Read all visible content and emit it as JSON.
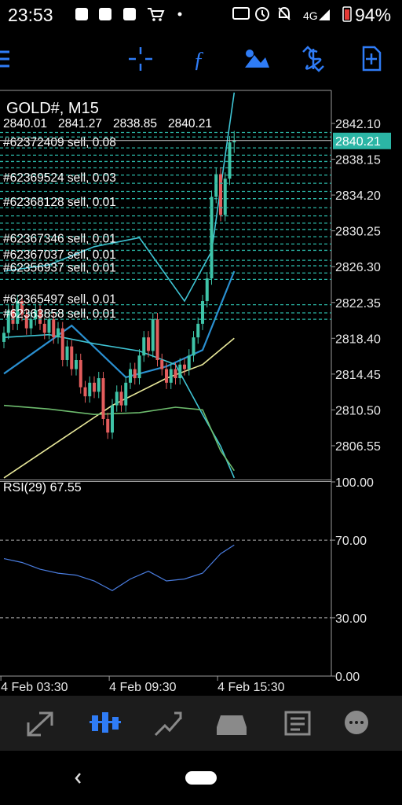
{
  "status_bar": {
    "time": "23:53",
    "network": "4G",
    "battery": "94%"
  },
  "chart": {
    "title": "GOLD#, M15",
    "ylim": [
      2802.82,
      2845.74
    ],
    "yticks": [
      {
        "value": 2842.1,
        "label": "2842.10"
      },
      2838.15,
      {
        "value": 2834.2,
        "label": "2834.20"
      },
      2830.25,
      {
        "value": 2826.3,
        "label": "2826.30"
      },
      2822.35,
      {
        "value": 2818.4,
        "label": "2818.40"
      },
      2814.45,
      {
        "value": 2810.5,
        "label": "2810.50"
      },
      2806.55
    ],
    "current_price": 2840.21,
    "candles": {
      "open": [
        2818.0,
        2819.0,
        2821.5,
        2820.0,
        2822.5,
        2821.0,
        2819.5,
        2820.5,
        2821.5,
        2820.0,
        2819.0,
        2820.5,
        2818.5,
        2819.5,
        2816.0,
        2817.5,
        2815.0,
        2816.0,
        2813.0,
        2812.0,
        2813.5,
        2812.5,
        2814.0,
        2809.5,
        2808.0,
        2811.0,
        2812.5,
        2811.0,
        2813.5,
        2815.0,
        2814.0,
        2816.5,
        2818.5,
        2817.0,
        2820.5,
        2816.0,
        2815.0,
        2813.5,
        2815.0,
        2814.0,
        2815.5,
        2815.0,
        2816.5,
        2818.5,
        2820.0,
        2822.5,
        2825.0,
        2834.0,
        2836.5,
        2832.0,
        2836.0,
        2840.01
      ],
      "high": [
        2819.7,
        2822.2,
        2822.2,
        2823.2,
        2823.2,
        2821.7,
        2821.2,
        2822.2,
        2822.2,
        2820.7,
        2821.2,
        2821.2,
        2820.2,
        2820.2,
        2818.2,
        2818.2,
        2816.7,
        2816.7,
        2813.7,
        2814.2,
        2814.2,
        2814.7,
        2814.7,
        2810.2,
        2811.7,
        2813.2,
        2813.2,
        2814.2,
        2815.7,
        2815.7,
        2817.2,
        2819.2,
        2819.2,
        2821.2,
        2821.2,
        2816.7,
        2815.7,
        2815.7,
        2815.7,
        2816.2,
        2816.2,
        2817.2,
        2819.2,
        2820.7,
        2823.2,
        2825.7,
        2834.7,
        2837.2,
        2837.2,
        2836.7,
        2840.7,
        2841.27
      ],
      "low": [
        2817.3,
        2818.3,
        2819.3,
        2819.3,
        2820.3,
        2818.8,
        2818.8,
        2819.8,
        2819.3,
        2818.3,
        2818.3,
        2817.8,
        2817.8,
        2815.3,
        2815.3,
        2814.3,
        2814.3,
        2812.3,
        2811.3,
        2811.3,
        2811.8,
        2811.8,
        2808.8,
        2807.3,
        2807.3,
        2810.3,
        2810.3,
        2810.3,
        2812.8,
        2813.3,
        2813.3,
        2815.8,
        2816.3,
        2816.3,
        2815.3,
        2814.3,
        2812.8,
        2812.8,
        2813.3,
        2813.3,
        2814.3,
        2814.3,
        2815.8,
        2817.8,
        2819.3,
        2821.8,
        2824.3,
        2833.3,
        2831.3,
        2831.3,
        2835.3,
        2838.85
      ],
      "close": [
        2819.0,
        2821.5,
        2820.0,
        2822.5,
        2821.0,
        2819.5,
        2820.5,
        2821.5,
        2820.0,
        2819.0,
        2820.5,
        2818.5,
        2819.5,
        2816.0,
        2817.5,
        2815.0,
        2816.0,
        2813.0,
        2812.0,
        2813.5,
        2812.5,
        2814.0,
        2809.5,
        2808.0,
        2811.0,
        2812.5,
        2811.0,
        2813.5,
        2815.0,
        2814.0,
        2816.5,
        2818.5,
        2817.0,
        2820.5,
        2816.0,
        2815.0,
        2813.5,
        2815.0,
        2814.0,
        2815.5,
        2815.0,
        2816.5,
        2818.5,
        2820.0,
        2822.5,
        2825.0,
        2834.0,
        2836.5,
        2832.0,
        2836.0,
        2840.01,
        2840.21
      ]
    },
    "indicators": [
      {
        "color": "#2a8fd0",
        "x": [
          0,
          15,
          27,
          36,
          44,
          51
        ],
        "values": [
          2814.5,
          2819.8,
          2814.1,
          2815.3,
          2817.1,
          2825.8
        ]
      },
      {
        "color": "#e8e89a",
        "x": [
          0,
          12,
          24,
          36,
          44,
          51
        ],
        "values": [
          2803.0,
          2807.0,
          2811.0,
          2814.0,
          2815.5,
          2818.4
        ]
      },
      {
        "color": "#3fc4d4",
        "x": [
          0,
          10,
          20,
          30,
          40,
          46,
          51
        ],
        "values": [
          2825.8,
          2826.5,
          2828.5,
          2829.5,
          2822.5,
          2828.0,
          2845.5
        ]
      },
      {
        "color": "#3fc4d4",
        "x": [
          0,
          10,
          20,
          30,
          38,
          44,
          48,
          51
        ],
        "values": [
          2818.5,
          2818.8,
          2817.8,
          2817.0,
          2815.5,
          2810.0,
          2806.5,
          2803.0
        ]
      },
      {
        "color": "#6dbb6d",
        "x": [
          0,
          10,
          20,
          30,
          38,
          44,
          48,
          51
        ],
        "values": [
          2811.0,
          2810.6,
          2810.0,
          2810.2,
          2810.8,
          2810.5,
          2806.0,
          2803.8
        ]
      }
    ],
    "orders": [
      {
        "label": "#62372409 sell, 0.08",
        "price": 2839.4
      },
      {
        "label": "#62369524 sell, 0.03",
        "price": 2835.5
      },
      {
        "label": "#62368128 sell, 0.01",
        "price": 2832.8
      },
      {
        "label": "#62367346 sell, 0.01",
        "price": 2828.8
      },
      {
        "label": "#62367037 sell, 0.01",
        "price": 2827.0
      },
      {
        "label": "#62356937 sell, 0.01",
        "price": 2825.6
      },
      {
        "label": "#62365497 sell, 0.01",
        "price": 2822.1
      },
      {
        "label": "#62363858 sell, 0.01",
        "price": 2820.5
      }
    ],
    "other_order_prices": [
      2841.1,
      2840.6,
      2838.6,
      2837.9,
      2837.2,
      2836.4,
      2834.6,
      2833.8,
      2831.9,
      2831.1,
      2830.4,
      2829.6,
      2828.1,
      2826.4,
      2824.9,
      2821.2
    ],
    "rsi": {
      "label": "RSI(29)",
      "ylim": [
        0,
        100
      ],
      "yticks": [
        {
          "value": 100,
          "label": "100.00"
        },
        {
          "value": 70,
          "label": "70.00"
        },
        {
          "value": 30,
          "label": "30.00"
        },
        {
          "value": 0,
          "label": "0.00"
        }
      ],
      "levels": [
        70,
        30
      ],
      "x": [
        0,
        4,
        8,
        12,
        16,
        20,
        24,
        28,
        32,
        36,
        40,
        44,
        48,
        51
      ],
      "values": [
        60.5,
        58.5,
        55.0,
        53.0,
        52.0,
        49.0,
        44.0,
        50.0,
        54.0,
        49.0,
        50.0,
        53.0,
        63.0,
        67.55
      ]
    },
    "time_labels": [
      "4 Feb 03:30",
      "4 Feb 09:30",
      "4 Feb 15:30"
    ]
  }
}
